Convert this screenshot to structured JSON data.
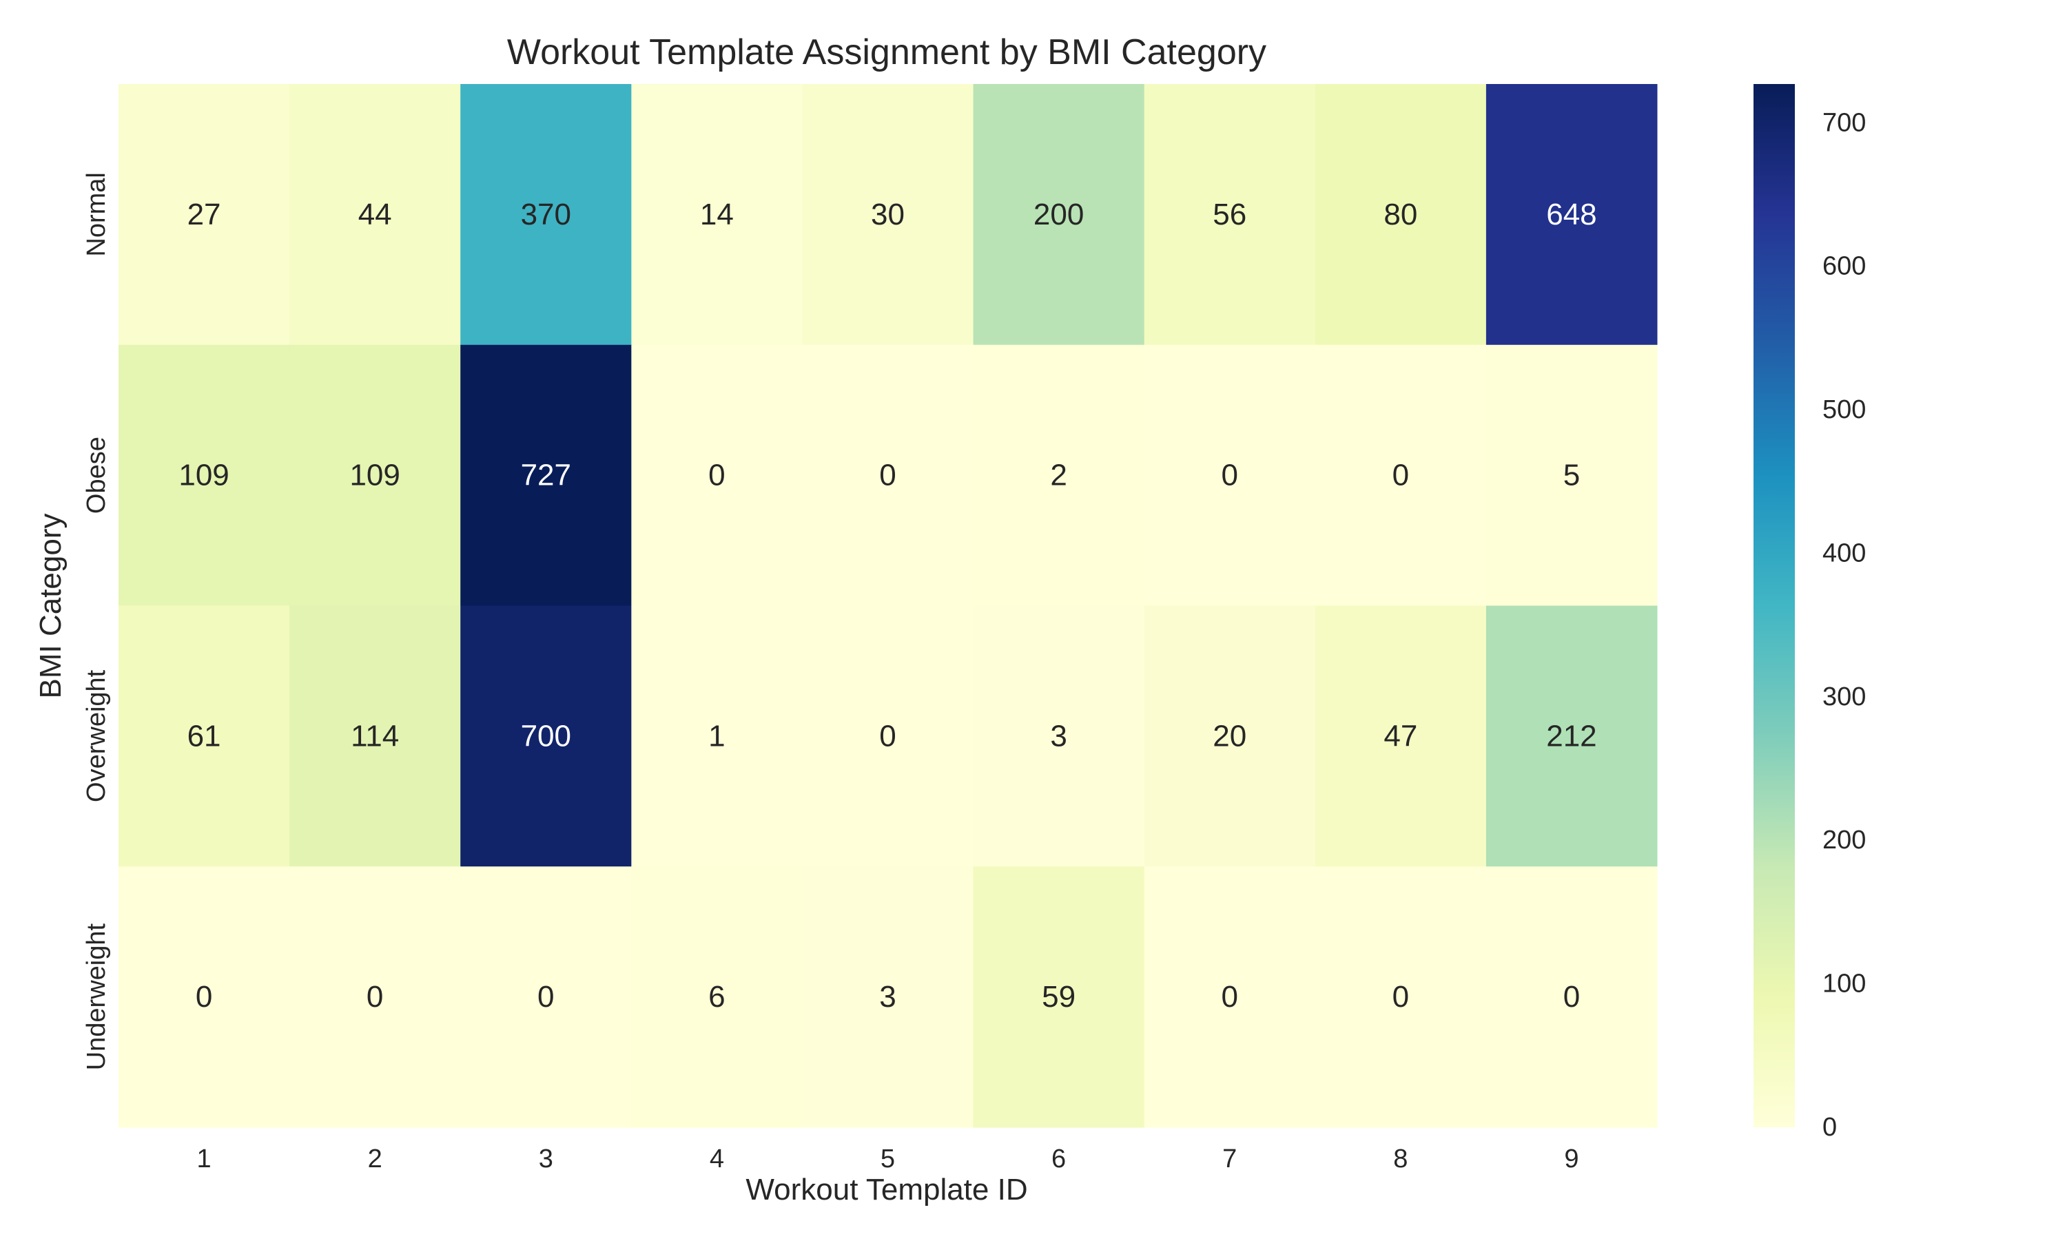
{
  "chart_data": {
    "type": "heatmap",
    "title": "Workout Template Assignment by BMI Category",
    "xlabel": "Workout Template ID",
    "ylabel": "BMI Category",
    "x_categories": [
      "1",
      "2",
      "3",
      "4",
      "5",
      "6",
      "7",
      "8",
      "9"
    ],
    "y_categories": [
      "Normal",
      "Obese",
      "Overweight",
      "Underweight"
    ],
    "values": [
      [
        27,
        44,
        370,
        14,
        30,
        200,
        56,
        80,
        648
      ],
      [
        109,
        109,
        727,
        0,
        0,
        2,
        0,
        0,
        5
      ],
      [
        61,
        114,
        700,
        1,
        0,
        3,
        20,
        47,
        212
      ],
      [
        0,
        0,
        0,
        6,
        3,
        59,
        0,
        0,
        0
      ]
    ],
    "colorbar": {
      "min": 0,
      "max": 727,
      "ticks": [
        0,
        100,
        200,
        300,
        400,
        500,
        600,
        700
      ],
      "colormap": "YlGnBu"
    },
    "grid": false
  }
}
